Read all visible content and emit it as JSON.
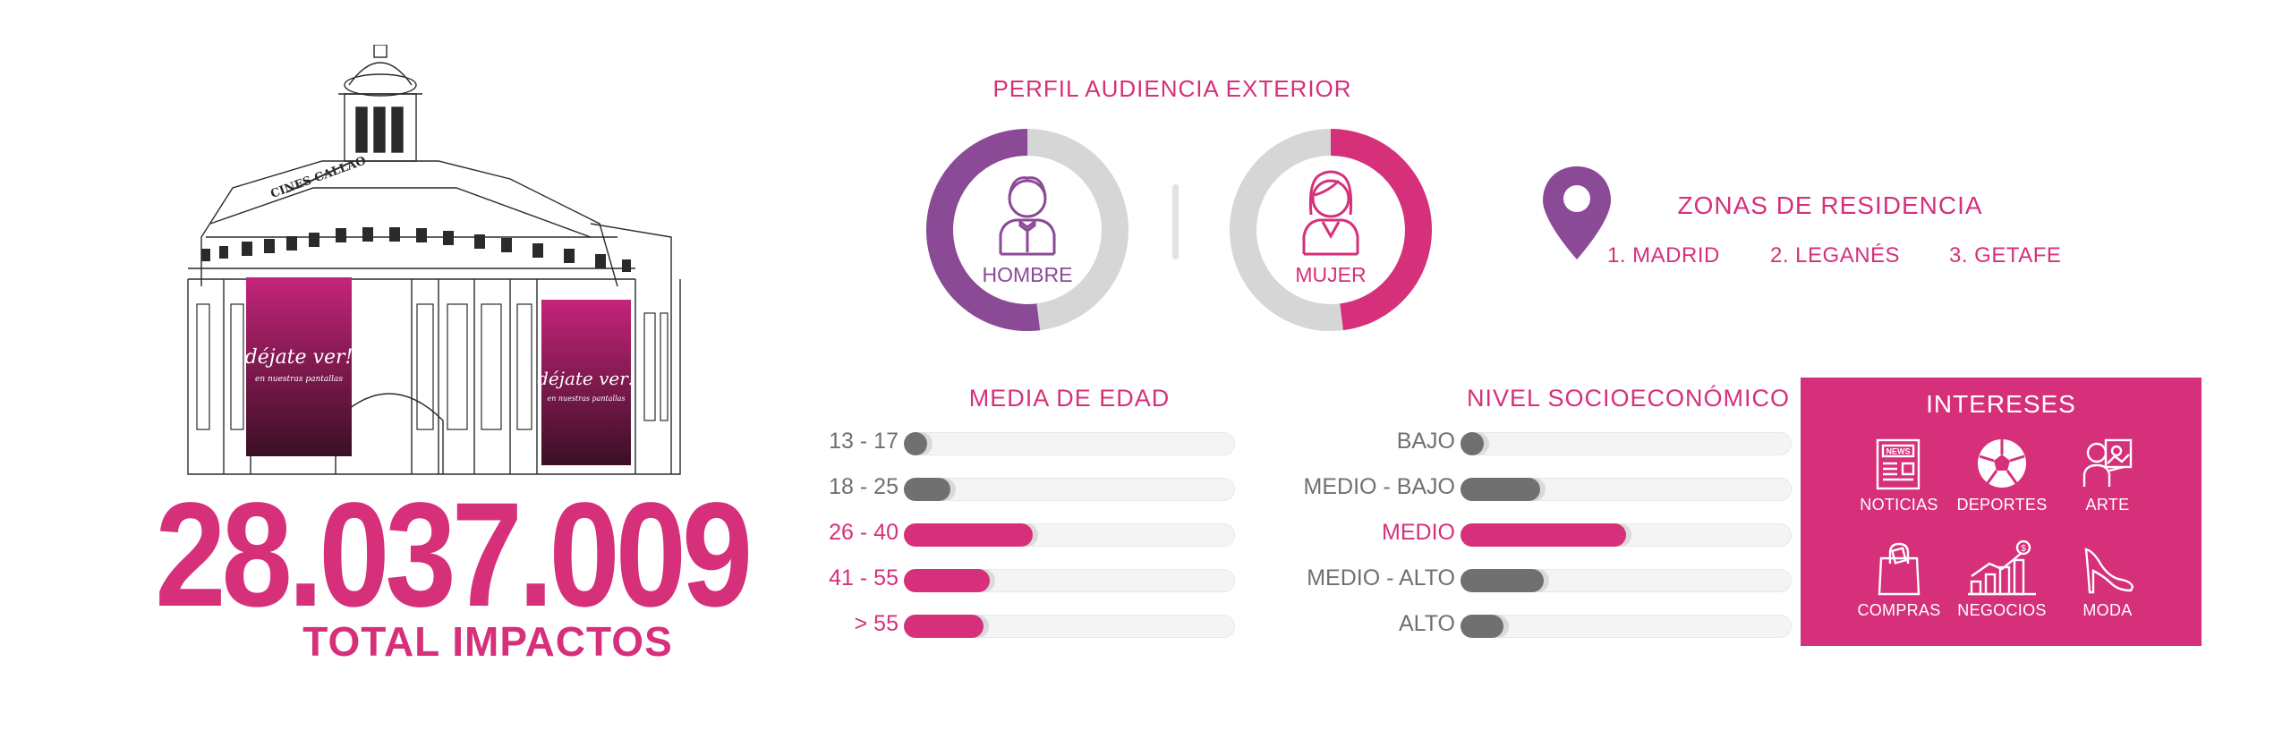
{
  "total": {
    "value": "28.037.009",
    "label": "TOTAL IMPACTOS"
  },
  "building": {
    "sign": "CINES CALLAO",
    "poster_text": "déjate ver!",
    "poster_subtext": "en nuestras pantallas"
  },
  "profile": {
    "title": "PERFIL AUDIENCIA EXTERIOR",
    "male": {
      "label": "HOMBRE",
      "share": 0.52,
      "color": "#8a4a96"
    },
    "female": {
      "label": "MUJER",
      "share": 0.48,
      "color": "#d6307a"
    }
  },
  "zones": {
    "title": "ZONAS DE RESIDENCIA",
    "items": [
      "1. MADRID",
      "2. LEGANÉS",
      "3. GETAFE"
    ]
  },
  "colors": {
    "accent": "#d6307a",
    "purple": "#8a4a96",
    "gray_bar": "#707070",
    "track": "#f4f4f4",
    "ring_gray": "#d6d6d6",
    "label_gray": "#707070"
  },
  "chart_data": [
    {
      "type": "bar",
      "orientation": "horizontal",
      "title": "MEDIA DE EDAD",
      "categories": [
        "13 - 17",
        "18 - 25",
        "26 - 40",
        "41 - 55",
        "> 55"
      ],
      "values": [
        5,
        14,
        39,
        26,
        24
      ],
      "highlight": [
        false,
        false,
        true,
        true,
        true
      ],
      "xlim": [
        0,
        100
      ]
    },
    {
      "type": "bar",
      "orientation": "horizontal",
      "title": "NIVEL SOCIOECONÓMICO",
      "categories": [
        "BAJO",
        "MEDIO - BAJO",
        "MEDIO",
        "MEDIO - ALTO",
        "ALTO"
      ],
      "values": [
        7,
        24,
        50,
        25,
        13
      ],
      "highlight": [
        false,
        false,
        true,
        false,
        false
      ],
      "xlim": [
        0,
        100
      ]
    },
    {
      "type": "pie",
      "title": "PERFIL AUDIENCIA EXTERIOR",
      "categories": [
        "HOMBRE",
        "MUJER"
      ],
      "values": [
        52,
        48
      ]
    }
  ],
  "interests": {
    "title": "INTERESES",
    "items": [
      {
        "label": "NOTICIAS",
        "icon": "newspaper-icon"
      },
      {
        "label": "DEPORTES",
        "icon": "soccer-ball-icon"
      },
      {
        "label": "ARTE",
        "icon": "art-icon"
      },
      {
        "label": "COMPRAS",
        "icon": "shopping-bag-icon"
      },
      {
        "label": "NEGOCIOS",
        "icon": "business-chart-icon"
      },
      {
        "label": "MODA",
        "icon": "high-heel-icon"
      }
    ]
  }
}
